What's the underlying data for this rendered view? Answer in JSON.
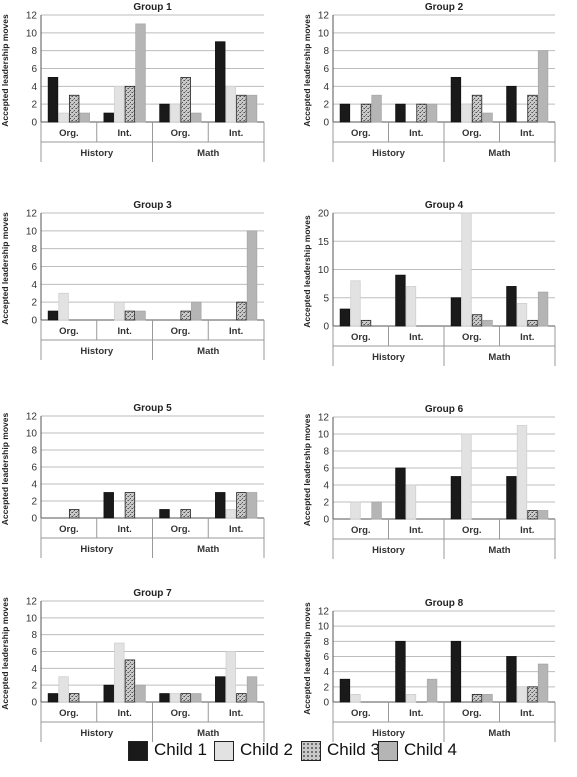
{
  "legend": {
    "entries": [
      "Child 1",
      "Child 2",
      "Child 3",
      "Child 4"
    ],
    "placement": "bottom"
  },
  "colors": {
    "child1": "#1a1a1a",
    "child2": "#e2e2e2",
    "child3": "#b8b8b8",
    "child4": "#b5b5b5",
    "grid": "#bdbdbd",
    "axis": "#555555"
  },
  "chart_data": [
    {
      "type": "bar",
      "title": "Group 1",
      "ylabel": "Accepted leadership moves",
      "ylim": [
        0,
        12
      ],
      "yticks": [
        0,
        2,
        4,
        6,
        8,
        10,
        12
      ],
      "categories": [
        "Org.",
        "Int.",
        "Org.",
        "Int."
      ],
      "groups": [
        "History",
        "Math"
      ],
      "grid": true,
      "series": [
        {
          "name": "Child 1",
          "values": [
            5,
            1,
            2,
            9
          ]
        },
        {
          "name": "Child 2",
          "values": [
            1,
            4,
            2,
            4
          ]
        },
        {
          "name": "Child 3",
          "values": [
            3,
            4,
            5,
            3
          ]
        },
        {
          "name": "Child 4",
          "values": [
            1,
            11,
            1,
            3
          ]
        }
      ]
    },
    {
      "type": "bar",
      "title": "Group 2",
      "ylabel": "Accepted leadership moves",
      "ylim": [
        0,
        12
      ],
      "yticks": [
        0,
        2,
        4,
        6,
        8,
        10,
        12
      ],
      "categories": [
        "Org.",
        "Int.",
        "Org.",
        "Int."
      ],
      "groups": [
        "History",
        "Math"
      ],
      "grid": true,
      "series": [
        {
          "name": "Child 1",
          "values": [
            2,
            2,
            5,
            4
          ]
        },
        {
          "name": "Child 2",
          "values": [
            0,
            0,
            2,
            0
          ]
        },
        {
          "name": "Child 3",
          "values": [
            2,
            2,
            3,
            3
          ]
        },
        {
          "name": "Child 4",
          "values": [
            3,
            2,
            1,
            8
          ]
        }
      ]
    },
    {
      "type": "bar",
      "title": "Group 3",
      "ylabel": "Accepted leadership moves",
      "ylim": [
        0,
        12
      ],
      "yticks": [
        0,
        2,
        4,
        6,
        8,
        10,
        12
      ],
      "categories": [
        "Org.",
        "Int.",
        "Org.",
        "Int."
      ],
      "groups": [
        "History",
        "Math"
      ],
      "grid": true,
      "series": [
        {
          "name": "Child 1",
          "values": [
            1,
            0,
            0,
            0
          ]
        },
        {
          "name": "Child 2",
          "values": [
            3,
            2,
            0,
            0
          ]
        },
        {
          "name": "Child 3",
          "values": [
            0,
            1,
            1,
            2
          ]
        },
        {
          "name": "Child 4",
          "values": [
            0,
            1,
            2,
            10
          ]
        }
      ]
    },
    {
      "type": "bar",
      "title": "Group 4",
      "ylabel": "Accepted leadership moves",
      "ylim": [
        0,
        20
      ],
      "yticks": [
        0,
        5,
        10,
        15,
        20
      ],
      "categories": [
        "Org.",
        "Int.",
        "Org.",
        "Int."
      ],
      "groups": [
        "History",
        "Math"
      ],
      "grid": true,
      "series": [
        {
          "name": "Child 1",
          "values": [
            3,
            9,
            5,
            7
          ]
        },
        {
          "name": "Child 2",
          "values": [
            8,
            7,
            20,
            4
          ]
        },
        {
          "name": "Child 3",
          "values": [
            1,
            0,
            2,
            1
          ]
        },
        {
          "name": "Child 4",
          "values": [
            0,
            0,
            1,
            6
          ]
        }
      ]
    },
    {
      "type": "bar",
      "title": "Group 5",
      "ylabel": "Accepted leadership moves",
      "ylim": [
        0,
        12
      ],
      "yticks": [
        0,
        2,
        4,
        6,
        8,
        10,
        12
      ],
      "categories": [
        "Org.",
        "Int.",
        "Org.",
        "Int."
      ],
      "groups": [
        "History",
        "Math"
      ],
      "grid": true,
      "series": [
        {
          "name": "Child 1",
          "values": [
            0,
            3,
            1,
            3
          ]
        },
        {
          "name": "Child 2",
          "values": [
            0,
            0,
            0,
            1
          ]
        },
        {
          "name": "Child 3",
          "values": [
            1,
            3,
            1,
            3
          ]
        },
        {
          "name": "Child 4",
          "values": [
            0,
            0,
            0,
            3
          ]
        }
      ]
    },
    {
      "type": "bar",
      "title": "Group 6",
      "ylabel": "Accepted leadership moves",
      "ylim": [
        0,
        12
      ],
      "yticks": [
        0,
        2,
        4,
        6,
        8,
        10,
        12
      ],
      "categories": [
        "Org.",
        "Int.",
        "Org.",
        "Int."
      ],
      "groups": [
        "History",
        "Math"
      ],
      "grid": true,
      "series": [
        {
          "name": "Child 1",
          "values": [
            0,
            6,
            5,
            5
          ]
        },
        {
          "name": "Child 2",
          "values": [
            2,
            4,
            10,
            11
          ]
        },
        {
          "name": "Child 3",
          "values": [
            0,
            0,
            0,
            1
          ]
        },
        {
          "name": "Child 4",
          "values": [
            2,
            0,
            0,
            1
          ]
        }
      ]
    },
    {
      "type": "bar",
      "title": "Group 7",
      "ylabel": "Accepted leadership moves",
      "ylim": [
        0,
        12
      ],
      "yticks": [
        0,
        2,
        4,
        6,
        8,
        10,
        12
      ],
      "categories": [
        "Org.",
        "Int.",
        "Org.",
        "Int."
      ],
      "groups": [
        "History",
        "Math"
      ],
      "grid": true,
      "series": [
        {
          "name": "Child 1",
          "values": [
            1,
            2,
            1,
            3
          ]
        },
        {
          "name": "Child 2",
          "values": [
            3,
            7,
            1,
            6
          ]
        },
        {
          "name": "Child 3",
          "values": [
            1,
            5,
            1,
            1
          ]
        },
        {
          "name": "Child 4",
          "values": [
            0,
            2,
            1,
            3
          ]
        }
      ]
    },
    {
      "type": "bar",
      "title": "Group 8",
      "ylabel": "Accepted leadership moves",
      "ylim": [
        0,
        12
      ],
      "yticks": [
        0,
        2,
        4,
        6,
        8,
        10,
        12
      ],
      "categories": [
        "Org.",
        "Int.",
        "Org.",
        "Int."
      ],
      "groups": [
        "History",
        "Math"
      ],
      "grid": true,
      "series": [
        {
          "name": "Child 1",
          "values": [
            3,
            8,
            8,
            6
          ]
        },
        {
          "name": "Child 2",
          "values": [
            1,
            1,
            0,
            2
          ]
        },
        {
          "name": "Child 3",
          "values": [
            0,
            0,
            1,
            2
          ]
        },
        {
          "name": "Child 4",
          "values": [
            0,
            3,
            1,
            5
          ]
        }
      ]
    }
  ]
}
